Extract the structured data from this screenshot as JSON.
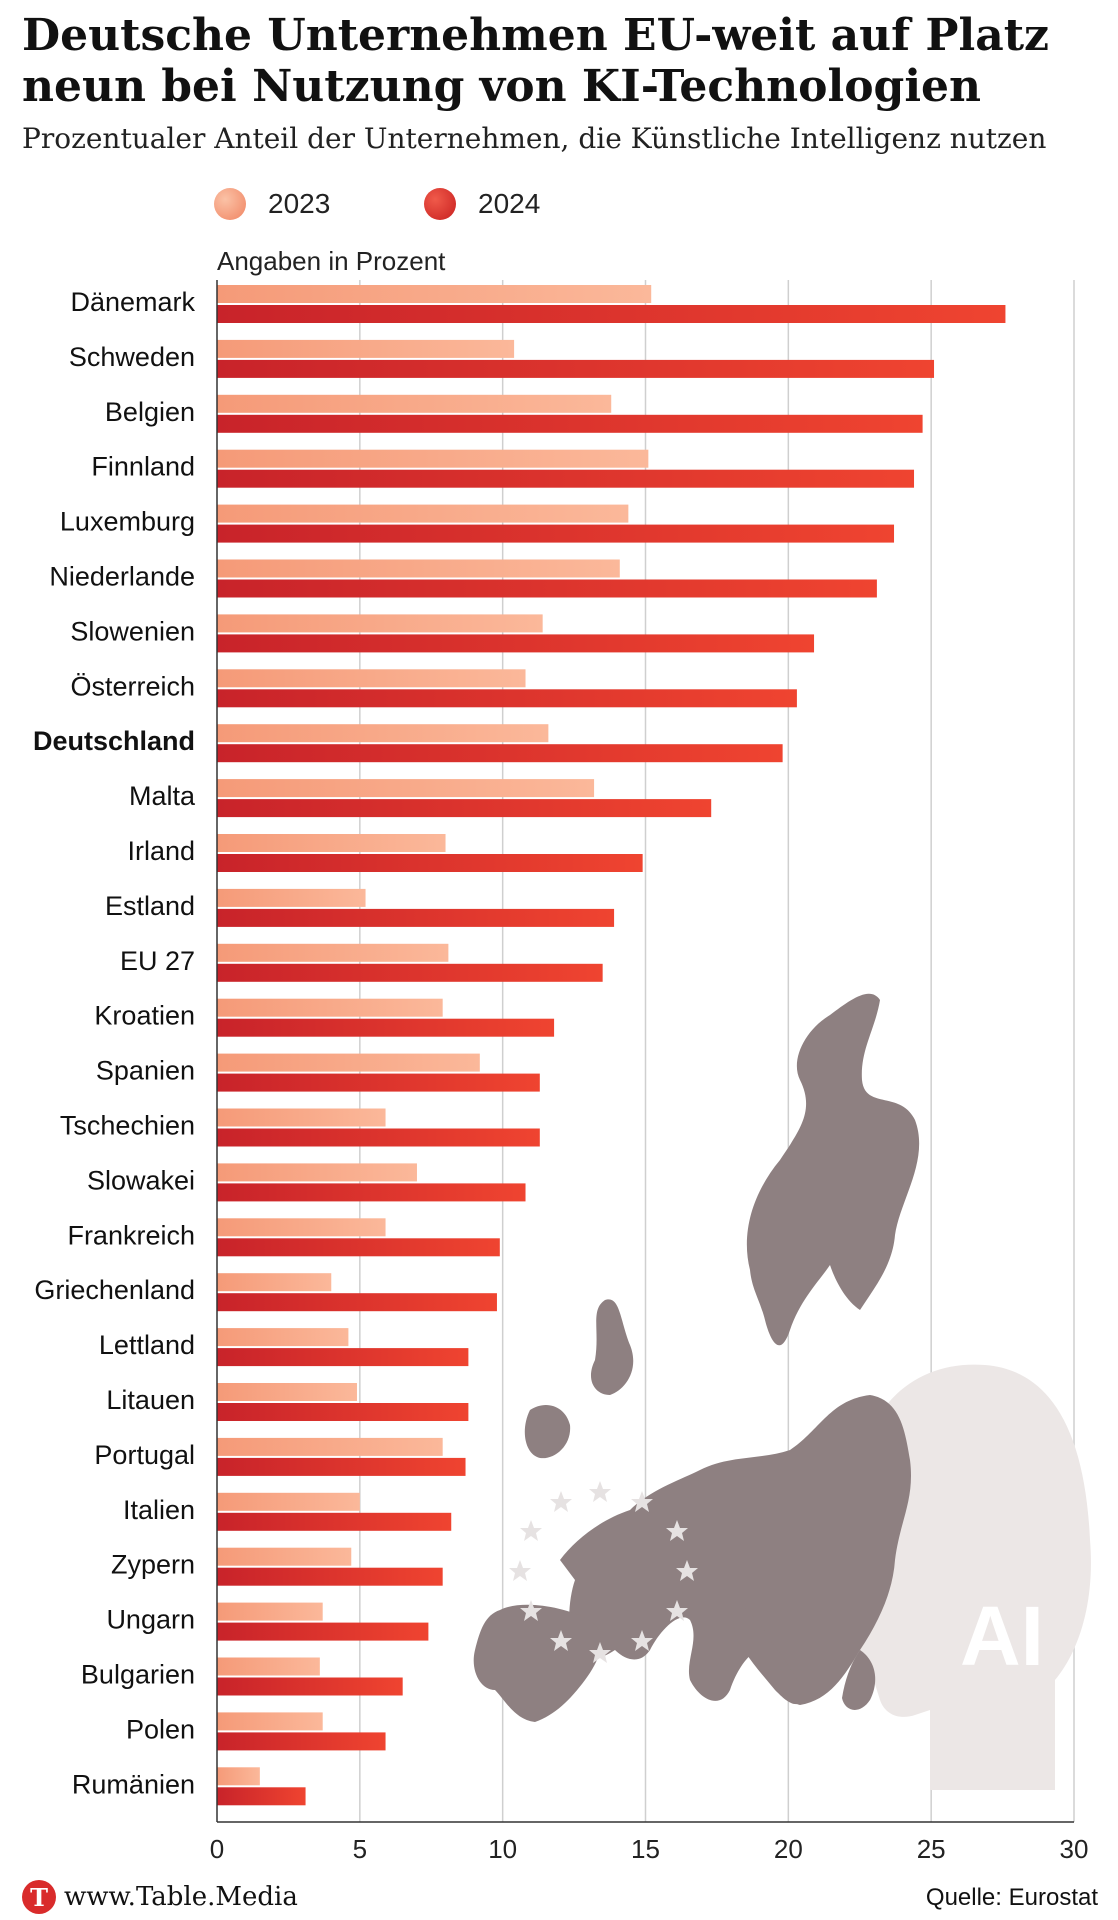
{
  "header": {
    "title": "Deutsche Unternehmen EU-weit auf Platz neun bei Nutzung von KI-Technologien",
    "subtitle": "Prozentualer Anteil der Unternehmen, die Künstliche Intelligenz nutzen"
  },
  "footer": {
    "logo_letter": "T",
    "url": "www.Table.Media",
    "source": "Quelle: Eurostat"
  },
  "chart_data": {
    "type": "bar",
    "orientation": "horizontal",
    "title": "Deutsche Unternehmen EU-weit auf Platz neun bei Nutzung von KI-Technologien",
    "subtitle": "Prozentualer Anteil der Unternehmen, die Künstliche Intelligenz nutzen",
    "axis_note": "Angaben in Prozent",
    "xlim": [
      0,
      30
    ],
    "x_ticks": [
      0,
      5,
      10,
      15,
      20,
      25,
      30
    ],
    "grid": true,
    "legend_position": "top",
    "highlight_category": "Deutschland",
    "categories": [
      "Dänemark",
      "Schweden",
      "Belgien",
      "Finnland",
      "Luxemburg",
      "Niederlande",
      "Slowenien",
      "Österreich",
      "Deutschland",
      "Malta",
      "Irland",
      "Estland",
      "EU 27",
      "Kroatien",
      "Spanien",
      "Tschechien",
      "Slowakei",
      "Frankreich",
      "Griechenland",
      "Lettland",
      "Litauen",
      "Portugal",
      "Italien",
      "Zypern",
      "Ungarn",
      "Bulgarien",
      "Polen",
      "Rumänien"
    ],
    "series": [
      {
        "name": "2023",
        "color": "#f6a07e",
        "values": [
          15.2,
          10.4,
          13.8,
          15.1,
          14.4,
          14.1,
          11.4,
          10.8,
          11.6,
          13.2,
          8.0,
          5.2,
          8.1,
          7.9,
          9.2,
          5.9,
          7.0,
          5.9,
          4.0,
          4.6,
          4.9,
          7.9,
          5.0,
          4.7,
          3.7,
          3.6,
          3.7,
          1.5
        ]
      },
      {
        "name": "2024",
        "color": "#e03a2a",
        "values": [
          27.6,
          25.1,
          24.7,
          24.4,
          23.7,
          23.1,
          20.9,
          20.3,
          19.8,
          17.3,
          14.9,
          13.9,
          13.5,
          11.8,
          11.3,
          11.3,
          10.8,
          9.9,
          9.8,
          8.8,
          8.8,
          8.7,
          8.2,
          7.9,
          7.4,
          6.5,
          5.9,
          3.1
        ]
      }
    ]
  }
}
